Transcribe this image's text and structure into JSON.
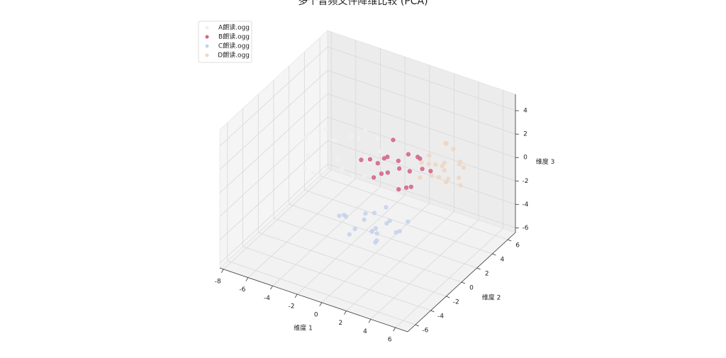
{
  "chart_data": {
    "type": "scatter3d",
    "title": "多个音频文件降维比较 (PCA)",
    "xlabel": "维度 1",
    "ylabel": "维度 2",
    "zlabel": "维度 3",
    "xlim": [
      -8.3,
      7
    ],
    "ylim": [
      -7,
      7
    ],
    "zlim": [
      -6.4,
      5.4
    ],
    "xticks": [
      -8,
      -6,
      -4,
      -2,
      0,
      2,
      4,
      6
    ],
    "yticks": [
      -6,
      -4,
      -2,
      0,
      2,
      4,
      6
    ],
    "zticks": [
      -6,
      -4,
      -2,
      0,
      2,
      4
    ],
    "grid": true,
    "legend": "upper left",
    "series": [
      {
        "name": "A朗读.ogg",
        "color": "#eef0f5",
        "x": [
          -6.5,
          -5.8,
          -5.2,
          -4.9,
          -4.3,
          -4.0,
          -3.6,
          -3.2,
          -2.9,
          -2.5,
          -2.1,
          -1.8,
          -1.4,
          -1.0,
          -0.6,
          -5.5,
          -3.8,
          -2.7,
          -1.5,
          -4.6
        ],
        "y": [
          1.5,
          0.2,
          2.8,
          -1.0,
          1.9,
          3.2,
          0.5,
          -0.8,
          2.4,
          1.1,
          3.6,
          -1.5,
          0.8,
          2.2,
          -0.3,
          -0.4,
          -2.0,
          3.0,
          1.6,
          0.9
        ],
        "z": [
          0.5,
          1.2,
          -0.3,
          0.8,
          -1.1,
          0.2,
          1.6,
          -0.6,
          0.9,
          -1.4,
          0.4,
          1.0,
          -0.8,
          0.6,
          1.8,
          -0.9,
          0.3,
          1.3,
          -0.2,
          2.0
        ]
      },
      {
        "name": "B朗读.ogg",
        "color": "#d5648a",
        "x": [
          -1.8,
          -1.2,
          -0.7,
          -0.3,
          0.1,
          0.4,
          0.8,
          1.1,
          1.5,
          1.9,
          2.3,
          2.6,
          -0.9,
          0.6,
          1.3,
          2.0,
          -0.2,
          1.7,
          0.3,
          2.8
        ],
        "y": [
          1.0,
          2.2,
          0.4,
          1.6,
          2.8,
          0.9,
          1.8,
          2.5,
          0.6,
          1.4,
          2.1,
          3.0,
          1.2,
          -0.2,
          3.4,
          0.8,
          2.6,
          1.9,
          1.1,
          1.6
        ],
        "z": [
          0.3,
          -0.5,
          1.1,
          0.6,
          -0.2,
          1.4,
          0.0,
          0.9,
          -0.8,
          0.4,
          1.2,
          -0.3,
          -1.0,
          0.7,
          0.2,
          -0.6,
          1.6,
          -1.3,
          -0.1,
          0.8
        ]
      },
      {
        "name": "C朗读.ogg",
        "color": "#c5d3ec",
        "x": [
          -1.0,
          -0.4,
          0.2,
          0.7,
          1.1,
          1.6,
          2.0,
          2.4,
          2.9,
          3.3,
          0.5,
          1.4,
          2.2,
          -0.2,
          3.0,
          1.8,
          0.9,
          2.6,
          -0.7,
          1.2
        ],
        "y": [
          -2.5,
          -3.2,
          -1.8,
          -3.8,
          -2.2,
          -1.2,
          -3.0,
          -2.0,
          -1.5,
          -2.6,
          -4.2,
          -0.8,
          -3.5,
          -1.0,
          -0.6,
          -2.9,
          -1.6,
          -4.0,
          -3.6,
          -2.4
        ],
        "z": [
          -2.0,
          -1.5,
          -2.4,
          -1.8,
          -2.8,
          -1.2,
          -2.2,
          -1.6,
          -2.6,
          -1.9,
          -2.1,
          -2.9,
          -1.4,
          -2.5,
          -2.3,
          -3.1,
          -1.7,
          -2.0,
          -1.3,
          -2.7
        ]
      },
      {
        "name": "D朗读.ogg",
        "color": "#efd6c4",
        "x": [
          2.5,
          3.0,
          3.4,
          3.8,
          4.2,
          4.6,
          5.0,
          5.4,
          3.2,
          4.0,
          4.8,
          2.8,
          3.6,
          4.4,
          5.2,
          3.0,
          4.1,
          4.9,
          3.5,
          5.6
        ],
        "y": [
          2.0,
          3.0,
          1.5,
          2.6,
          3.4,
          1.8,
          2.9,
          2.2,
          4.0,
          0.9,
          3.8,
          2.5,
          3.2,
          1.2,
          2.7,
          1.0,
          2.4,
          1.6,
          3.6,
          2.1
        ],
        "z": [
          1.0,
          0.4,
          1.5,
          0.8,
          1.9,
          0.2,
          1.2,
          0.6,
          1.7,
          1.1,
          0.3,
          1.4,
          0.0,
          0.9,
          1.6,
          0.5,
          1.3,
          0.7,
          2.0,
          0.1
        ]
      }
    ]
  }
}
